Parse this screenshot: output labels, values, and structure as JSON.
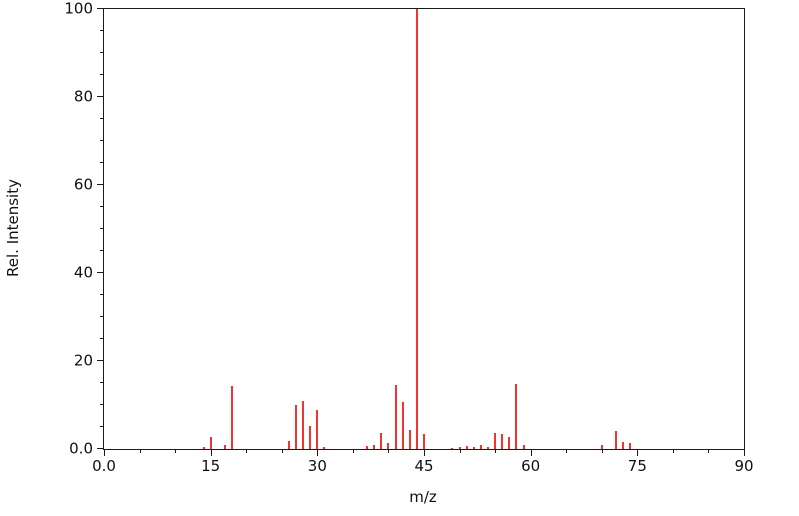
{
  "chart_data": {
    "type": "bar",
    "subtype": "mass-spectrum",
    "title": "",
    "xlabel": "m/z",
    "ylabel": "Rel. Intensity",
    "xlim": [
      0,
      90
    ],
    "ylim": [
      0,
      100
    ],
    "grid": false,
    "legend_position": "none",
    "bar_color": "#f03430",
    "axis_color": "#1a1a1a",
    "x_major_ticks": [
      0,
      15,
      30,
      45,
      60,
      75,
      90
    ],
    "x_tick_labels": [
      "0.0",
      "15",
      "30",
      "45",
      "60",
      "75",
      "90"
    ],
    "x_minor_tick_step": 5,
    "y_major_ticks": [
      0,
      20,
      40,
      60,
      80,
      100
    ],
    "y_tick_labels": [
      "0.0",
      "20",
      "40",
      "60",
      "80",
      "100"
    ],
    "y_minor_tick_step": 5,
    "peaks": [
      {
        "mz": 14,
        "intensity": 0.4
      },
      {
        "mz": 15,
        "intensity": 2.8
      },
      {
        "mz": 17,
        "intensity": 0.8
      },
      {
        "mz": 18,
        "intensity": 14.4
      },
      {
        "mz": 26,
        "intensity": 1.8
      },
      {
        "mz": 27,
        "intensity": 10.0
      },
      {
        "mz": 28,
        "intensity": 11.0
      },
      {
        "mz": 29,
        "intensity": 5.3
      },
      {
        "mz": 30,
        "intensity": 8.8
      },
      {
        "mz": 31,
        "intensity": 0.5
      },
      {
        "mz": 37,
        "intensity": 0.6
      },
      {
        "mz": 38,
        "intensity": 0.9
      },
      {
        "mz": 39,
        "intensity": 3.6
      },
      {
        "mz": 40,
        "intensity": 1.3
      },
      {
        "mz": 41,
        "intensity": 14.6
      },
      {
        "mz": 42,
        "intensity": 10.7
      },
      {
        "mz": 43,
        "intensity": 4.4
      },
      {
        "mz": 44,
        "intensity": 100.0
      },
      {
        "mz": 45,
        "intensity": 3.3
      },
      {
        "mz": 49,
        "intensity": 0.3
      },
      {
        "mz": 50,
        "intensity": 0.5
      },
      {
        "mz": 51,
        "intensity": 0.7
      },
      {
        "mz": 52,
        "intensity": 0.5
      },
      {
        "mz": 53,
        "intensity": 0.8
      },
      {
        "mz": 54,
        "intensity": 0.4
      },
      {
        "mz": 55,
        "intensity": 3.7
      },
      {
        "mz": 56,
        "intensity": 3.5
      },
      {
        "mz": 57,
        "intensity": 2.8
      },
      {
        "mz": 58,
        "intensity": 14.8
      },
      {
        "mz": 59,
        "intensity": 0.8
      },
      {
        "mz": 70,
        "intensity": 1.0
      },
      {
        "mz": 72,
        "intensity": 4.1
      },
      {
        "mz": 73,
        "intensity": 1.7
      },
      {
        "mz": 74,
        "intensity": 1.3
      }
    ]
  }
}
